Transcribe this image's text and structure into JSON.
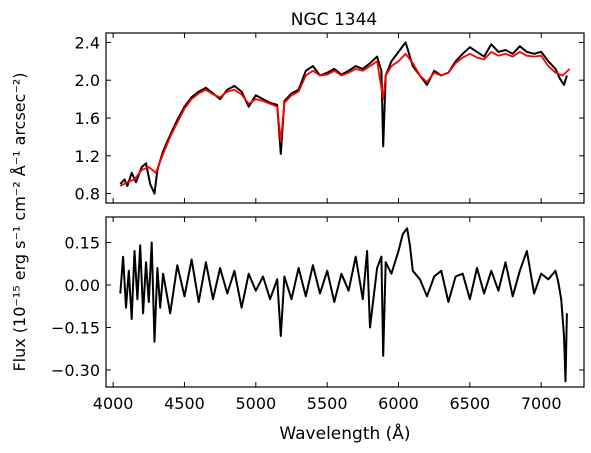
{
  "chart_data": [
    {
      "type": "line",
      "title": "NGC 1344",
      "xlabel": "",
      "ylabel": "",
      "xlim": [
        3950,
        7300
      ],
      "ylim": [
        0.7,
        2.5
      ],
      "xticks": [
        4000,
        4500,
        5000,
        5500,
        6000,
        6500,
        7000
      ],
      "yticks": [
        0.8,
        1.2,
        1.6,
        2.0,
        2.4
      ],
      "ytick_labels": [
        "0.8",
        "1.2",
        "1.6",
        "2.0",
        "2.4"
      ],
      "grid": false,
      "series": [
        {
          "color": "#000000",
          "x": [
            4050,
            4080,
            4100,
            4130,
            4160,
            4200,
            4230,
            4260,
            4290,
            4310,
            4350,
            4400,
            4450,
            4500,
            4550,
            4600,
            4650,
            4700,
            4750,
            4800,
            4850,
            4900,
            4950,
            5000,
            5050,
            5100,
            5150,
            5175,
            5200,
            5250,
            5300,
            5350,
            5400,
            5450,
            5500,
            5550,
            5600,
            5650,
            5700,
            5750,
            5800,
            5850,
            5880,
            5893,
            5910,
            5950,
            6000,
            6050,
            6080,
            6100,
            6150,
            6200,
            6250,
            6300,
            6350,
            6400,
            6450,
            6500,
            6550,
            6600,
            6650,
            6700,
            6750,
            6800,
            6850,
            6900,
            6950,
            7000,
            7050,
            7100,
            7130,
            7160,
            7180
          ],
          "values": [
            0.9,
            0.95,
            0.88,
            1.02,
            0.92,
            1.08,
            1.12,
            0.9,
            0.8,
            1.05,
            1.25,
            1.42,
            1.58,
            1.72,
            1.82,
            1.88,
            1.92,
            1.86,
            1.8,
            1.9,
            1.94,
            1.88,
            1.72,
            1.84,
            1.8,
            1.76,
            1.74,
            1.22,
            1.78,
            1.86,
            1.9,
            2.1,
            2.15,
            2.05,
            2.08,
            2.12,
            2.06,
            2.1,
            2.15,
            2.12,
            2.18,
            2.25,
            2.1,
            1.3,
            2.05,
            2.2,
            2.3,
            2.4,
            2.25,
            2.15,
            2.05,
            1.95,
            2.1,
            2.05,
            2.08,
            2.2,
            2.28,
            2.35,
            2.3,
            2.25,
            2.38,
            2.3,
            2.32,
            2.28,
            2.36,
            2.3,
            2.28,
            2.3,
            2.2,
            2.12,
            2.02,
            1.95,
            2.05
          ]
        },
        {
          "color": "#ff0000",
          "x": [
            4050,
            4100,
            4150,
            4200,
            4250,
            4300,
            4350,
            4400,
            4450,
            4500,
            4550,
            4600,
            4650,
            4700,
            4750,
            4800,
            4850,
            4900,
            4950,
            5000,
            5050,
            5100,
            5150,
            5175,
            5200,
            5250,
            5300,
            5350,
            5400,
            5450,
            5500,
            5550,
            5600,
            5650,
            5700,
            5750,
            5800,
            5850,
            5893,
            5910,
            5950,
            6000,
            6050,
            6100,
            6150,
            6200,
            6250,
            6300,
            6350,
            6400,
            6450,
            6500,
            6550,
            6600,
            6650,
            6700,
            6750,
            6800,
            6850,
            6900,
            6950,
            7000,
            7050,
            7100,
            7150,
            7200
          ],
          "values": [
            0.88,
            0.92,
            0.95,
            1.05,
            1.08,
            1.02,
            1.22,
            1.4,
            1.55,
            1.7,
            1.8,
            1.86,
            1.9,
            1.85,
            1.82,
            1.88,
            1.9,
            1.85,
            1.75,
            1.8,
            1.78,
            1.75,
            1.72,
            1.35,
            1.76,
            1.84,
            1.88,
            2.05,
            2.1,
            2.05,
            2.06,
            2.1,
            2.05,
            2.08,
            2.12,
            2.1,
            2.15,
            2.2,
            1.8,
            2.05,
            2.15,
            2.2,
            2.28,
            2.18,
            2.05,
            1.98,
            2.08,
            2.05,
            2.08,
            2.18,
            2.24,
            2.28,
            2.24,
            2.22,
            2.3,
            2.26,
            2.28,
            2.25,
            2.3,
            2.26,
            2.25,
            2.26,
            2.15,
            2.08,
            2.05,
            2.12
          ]
        }
      ]
    },
    {
      "type": "line",
      "title": "",
      "xlabel": "Wavelength (Å)",
      "ylabel": "Flux (10⁻¹⁵ erg s⁻¹ cm⁻² Å⁻¹ arcsec⁻²)",
      "xlim": [
        3950,
        7300
      ],
      "ylim": [
        -0.36,
        0.24
      ],
      "xticks": [
        4000,
        4500,
        5000,
        5500,
        6000,
        6500,
        7000
      ],
      "yticks": [
        0.15,
        0.0,
        -0.15,
        -0.3
      ],
      "ytick_labels": [
        "0.15",
        "0.00",
        "−0.15",
        "−0.30"
      ],
      "grid": false,
      "series": [
        {
          "color": "#000000",
          "x": [
            4050,
            4070,
            4090,
            4110,
            4130,
            4150,
            4170,
            4190,
            4210,
            4230,
            4250,
            4270,
            4290,
            4310,
            4330,
            4350,
            4400,
            4450,
            4500,
            4550,
            4600,
            4650,
            4700,
            4750,
            4800,
            4850,
            4900,
            4950,
            5000,
            5050,
            5100,
            5150,
            5175,
            5200,
            5250,
            5300,
            5350,
            5400,
            5450,
            5500,
            5550,
            5600,
            5650,
            5700,
            5750,
            5780,
            5800,
            5850,
            5880,
            5893,
            5910,
            5950,
            6000,
            6030,
            6060,
            6080,
            6100,
            6150,
            6200,
            6250,
            6300,
            6350,
            6400,
            6450,
            6500,
            6550,
            6600,
            6650,
            6700,
            6750,
            6800,
            6850,
            6900,
            6950,
            7000,
            7050,
            7100,
            7120,
            7140,
            7160,
            7170,
            7180
          ],
          "values": [
            -0.03,
            0.1,
            -0.08,
            0.05,
            -0.12,
            0.12,
            -0.05,
            0.14,
            -0.1,
            0.08,
            -0.06,
            0.15,
            -0.2,
            0.06,
            -0.08,
            0.04,
            -0.1,
            0.07,
            -0.04,
            0.09,
            -0.06,
            0.08,
            -0.05,
            0.06,
            -0.03,
            0.05,
            -0.08,
            0.04,
            -0.02,
            0.03,
            -0.05,
            0.02,
            -0.18,
            0.03,
            -0.05,
            0.06,
            -0.04,
            0.07,
            -0.03,
            0.05,
            -0.06,
            0.04,
            -0.02,
            0.1,
            -0.05,
            0.12,
            -0.15,
            0.06,
            0.1,
            -0.25,
            0.08,
            0.04,
            0.12,
            0.18,
            0.2,
            0.14,
            0.05,
            0.02,
            -0.04,
            0.03,
            0.05,
            -0.06,
            0.03,
            0.04,
            -0.05,
            0.06,
            -0.03,
            0.05,
            -0.02,
            0.08,
            -0.04,
            0.05,
            0.12,
            -0.03,
            0.04,
            0.02,
            0.05,
            0.01,
            -0.05,
            -0.18,
            -0.34,
            -0.1
          ]
        }
      ]
    }
  ]
}
